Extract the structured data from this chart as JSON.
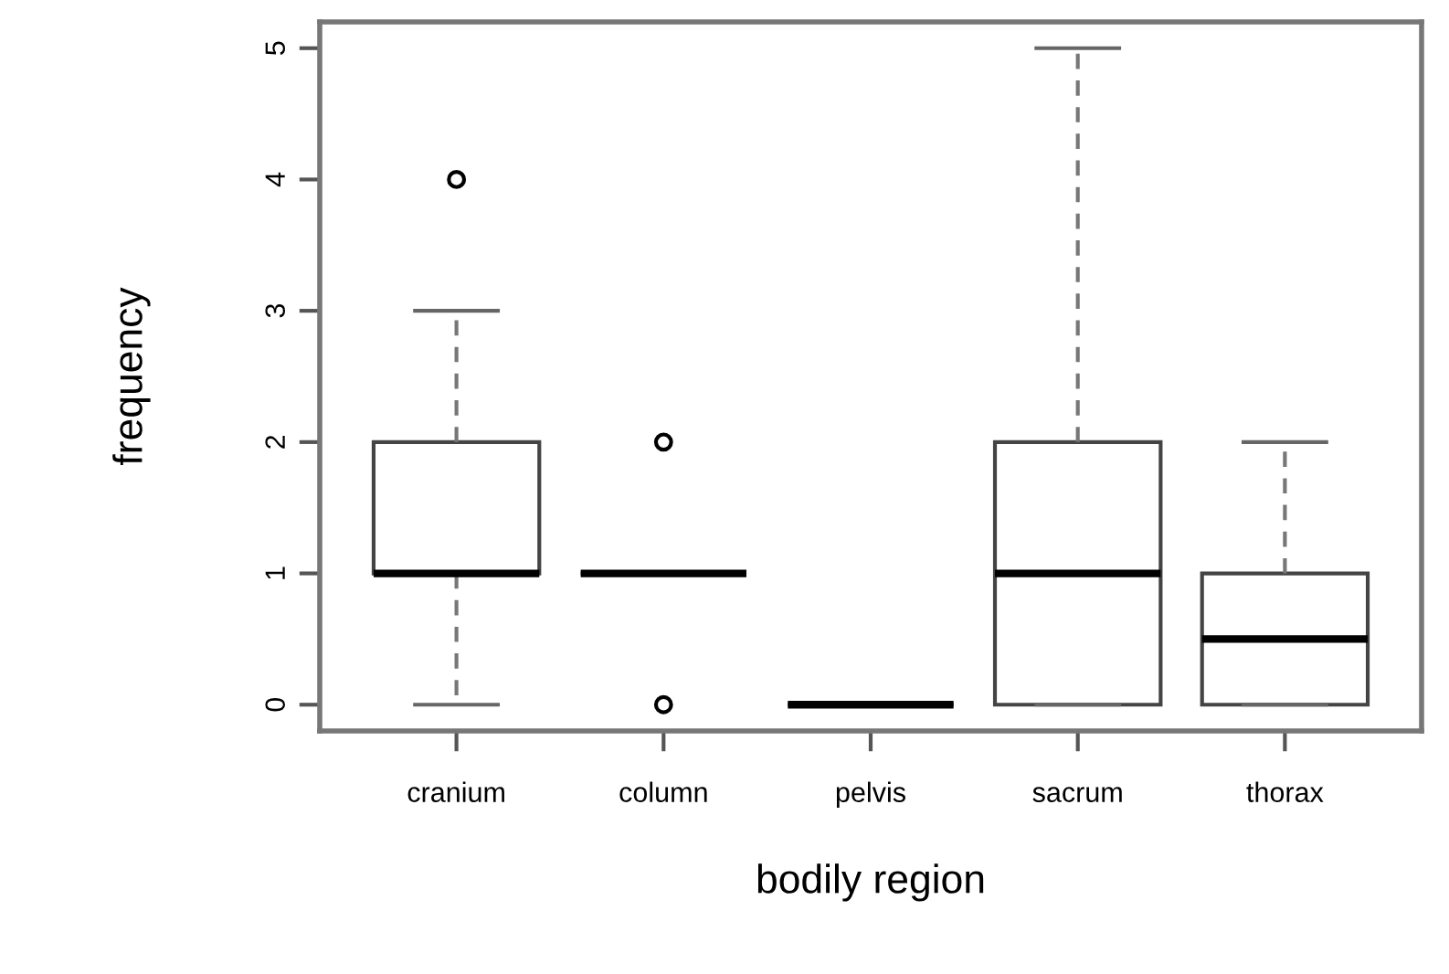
{
  "chart_data": {
    "type": "box",
    "xlabel": "bodily region",
    "ylabel": "frequency",
    "categories": [
      "cranium",
      "column",
      "pelvis",
      "sacrum",
      "thorax"
    ],
    "boxes": [
      {
        "low": 0,
        "q1": 1,
        "median": 1,
        "q3": 2,
        "high": 3,
        "outliers": [
          4
        ]
      },
      {
        "low": 1,
        "q1": 1,
        "median": 1,
        "q3": 1,
        "high": 1,
        "outliers": [
          0,
          2
        ]
      },
      {
        "low": 0,
        "q1": 0,
        "median": 0,
        "q3": 0,
        "high": 0
      },
      {
        "low": 0,
        "q1": 0,
        "median": 1,
        "q3": 2,
        "high": 5
      },
      {
        "low": 0,
        "q1": 0,
        "median": 0.5,
        "q3": 1,
        "high": 2
      }
    ],
    "ylim": [
      -0.2,
      5.2
    ],
    "yticks": [
      0,
      1,
      2,
      3,
      4,
      5
    ],
    "grid": false,
    "legend": false
  }
}
